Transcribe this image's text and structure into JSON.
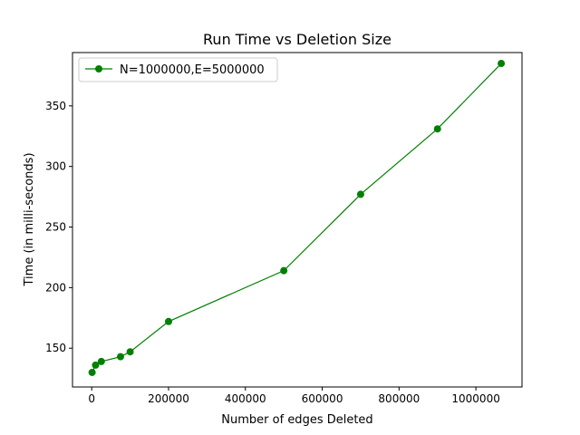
{
  "chart_data": {
    "type": "line",
    "title": "Run Time vs Deletion Size",
    "xlabel": "Number of edges Deleted",
    "ylabel": "Time (in milli-seconds)",
    "xlim": [
      -50000,
      1120000
    ],
    "ylim": [
      118,
      394
    ],
    "xticks": [
      0,
      200000,
      400000,
      600000,
      800000,
      1000000
    ],
    "xtick_labels": [
      "0",
      "200000",
      "400000",
      "600000",
      "800000",
      "1000000"
    ],
    "yticks": [
      150,
      200,
      250,
      300,
      350
    ],
    "ytick_labels": [
      "150",
      "200",
      "250",
      "300",
      "350"
    ],
    "grid": false,
    "legend_position": "top-left",
    "series": [
      {
        "name": "N=1000000,E=5000000",
        "color": "#008000",
        "marker": "circle",
        "x": [
          1000,
          10000,
          25000,
          75000,
          100000,
          200000,
          500000,
          700000,
          900000,
          1066000
        ],
        "y": [
          130,
          136,
          139,
          143,
          147,
          172,
          214,
          277,
          331,
          385
        ]
      }
    ]
  }
}
